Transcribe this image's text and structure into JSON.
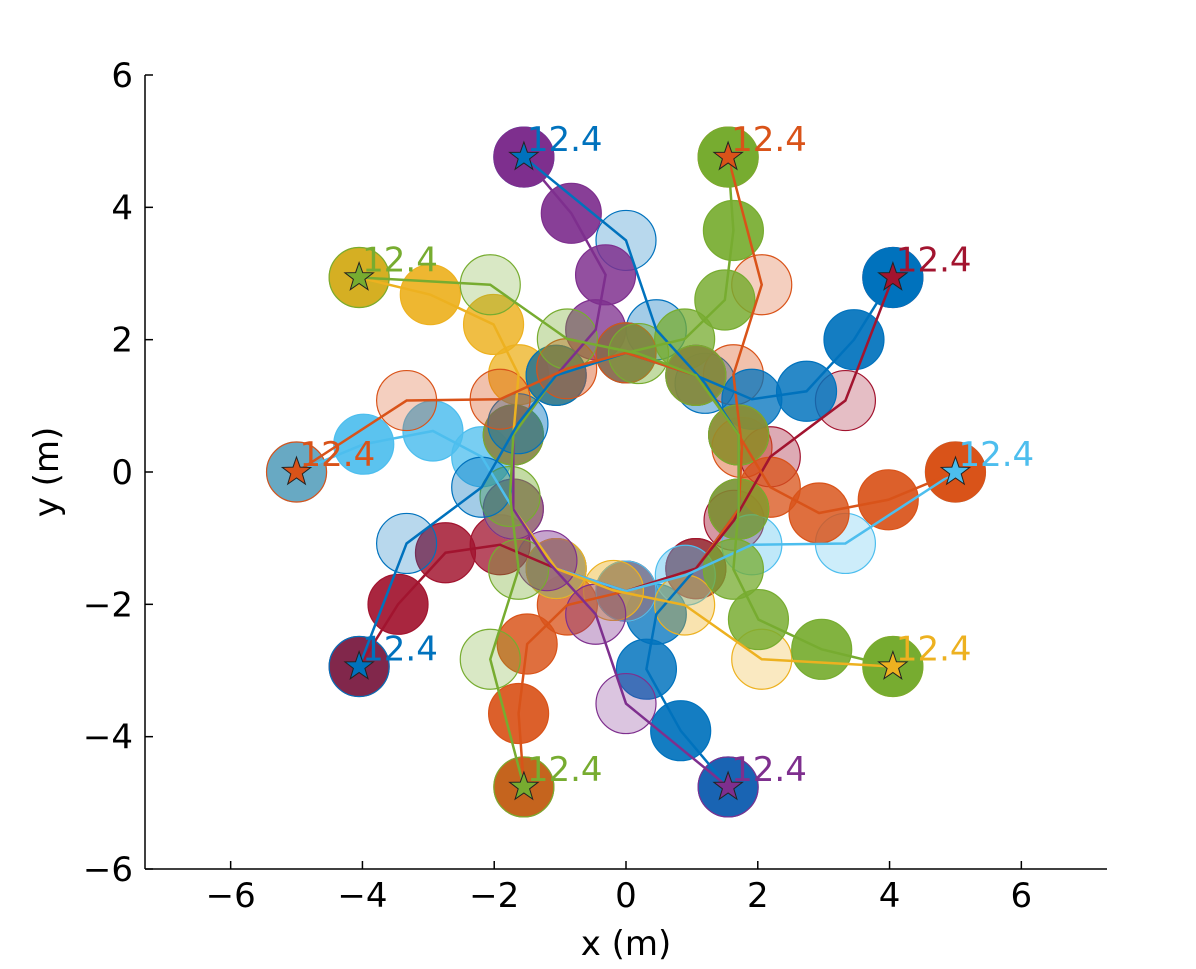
{
  "chart_data": {
    "type": "trajectory",
    "x_label": "x (m)",
    "y_label": "y (m)",
    "xlim": [
      -7.3,
      7.3
    ],
    "ylim": [
      -6,
      6
    ],
    "xticks": [
      {
        "value": -6,
        "label": "−6"
      },
      {
        "value": -4,
        "label": "−4"
      },
      {
        "value": -2,
        "label": "−2"
      },
      0,
      2,
      4,
      6
    ],
    "yticks": [
      {
        "value": -6,
        "label": "−6"
      },
      {
        "value": -4,
        "label": "−4"
      },
      {
        "value": -2,
        "label": "−2"
      },
      0,
      2,
      4,
      6
    ],
    "series": [
      {
        "color": "#0072bd",
        "goal_label": "12.4",
        "x": [
          1.55,
          0.83,
          0.31,
          0.46,
          1.06,
          1.71,
          1.71,
          1.2,
          0.46,
          0,
          -1.55
        ],
        "y": [
          -4.76,
          -3.91,
          -2.98,
          -2.15,
          -1.46,
          -0.56,
          0.56,
          1.34,
          2.15,
          3.5,
          4.76
        ]
      },
      {
        "color": "#d95319",
        "goal_label": "12.4",
        "x": [
          -1.55,
          -1.63,
          -1.5,
          -0.89,
          0,
          1.06,
          1.71,
          1.76,
          1.63,
          2.06,
          1.55
        ],
        "y": [
          -4.76,
          -3.65,
          -2.6,
          -2.01,
          -1.8,
          -1.46,
          -0.56,
          0.37,
          1.47,
          2.83,
          4.76
        ]
      },
      {
        "color": "#a2142f",
        "goal_label": "12.4",
        "x": [
          -4.05,
          -3.46,
          -2.74,
          -1.91,
          -1.06,
          0,
          1.06,
          1.64,
          2.19,
          3.33,
          4.05
        ],
        "y": [
          -2.94,
          -2,
          -1.22,
          -1.1,
          -1.46,
          -1.8,
          -1.46,
          -0.73,
          0.23,
          1.08,
          2.94
        ]
      },
      {
        "color": "#4dbeee",
        "goal_label": "12.4",
        "x": [
          -5,
          -3.98,
          -2.93,
          -2.19,
          -1.71,
          -1.06,
          0,
          0.9,
          1.91,
          3.33,
          5
        ],
        "y": [
          0,
          0.42,
          0.62,
          0.23,
          -0.56,
          -1.46,
          -1.8,
          -1.56,
          -1.1,
          -1.08,
          0
        ]
      },
      {
        "color": "#edb120",
        "goal_label": "12.4",
        "x": [
          -4.05,
          -2.97,
          -2.01,
          -1.63,
          -1.71,
          -1.71,
          -1.06,
          -0.19,
          0.89,
          2.06,
          4.05
        ],
        "y": [
          2.94,
          2.68,
          2.23,
          1.47,
          0.56,
          -0.56,
          -1.46,
          -1.79,
          -2.01,
          -2.83,
          -2.94
        ]
      },
      {
        "color": "#7e2f8e",
        "goal_label": "12.4",
        "x": [
          -1.55,
          -0.83,
          -0.31,
          -0.46,
          -1.06,
          -1.71,
          -1.71,
          -1.2,
          -0.46,
          0,
          1.55
        ],
        "y": [
          4.76,
          3.91,
          2.98,
          2.15,
          1.46,
          0.56,
          -0.56,
          -1.34,
          -2.15,
          -3.5,
          -4.76
        ]
      },
      {
        "color": "#77ac30",
        "goal_label": "12.4",
        "x": [
          1.55,
          1.63,
          1.5,
          0.89,
          0,
          -1.06,
          -1.71,
          -1.76,
          -1.63,
          -2.06,
          -1.55
        ],
        "y": [
          4.76,
          3.65,
          2.6,
          2.01,
          1.8,
          1.46,
          0.56,
          -0.37,
          -1.47,
          -2.83,
          -4.76
        ]
      },
      {
        "color": "#0072bd",
        "goal_label": "12.4",
        "x": [
          4.05,
          3.46,
          2.74,
          1.91,
          1.06,
          0,
          -1.06,
          -1.64,
          -2.19,
          -3.33,
          -4.05
        ],
        "y": [
          2.94,
          2,
          1.22,
          1.1,
          1.46,
          1.8,
          1.46,
          0.73,
          -0.23,
          -1.08,
          -2.94
        ]
      },
      {
        "color": "#d95319",
        "goal_label": "12.4",
        "x": [
          5,
          3.98,
          2.93,
          2.19,
          1.71,
          1.06,
          0,
          -0.9,
          -1.91,
          -3.33,
          -5
        ],
        "y": [
          0,
          -0.42,
          -0.62,
          -0.23,
          0.56,
          1.46,
          1.8,
          1.56,
          1.1,
          1.08,
          0
        ]
      },
      {
        "color": "#77ac30",
        "goal_label": "12.4",
        "x": [
          4.05,
          2.97,
          2.01,
          1.63,
          1.71,
          1.71,
          1.06,
          0.19,
          -0.89,
          -2.06,
          -4.05
        ],
        "y": [
          -2.94,
          -2.68,
          -2.23,
          -1.47,
          -0.56,
          0.56,
          1.46,
          1.79,
          2.01,
          2.83,
          2.94
        ]
      }
    ]
  }
}
